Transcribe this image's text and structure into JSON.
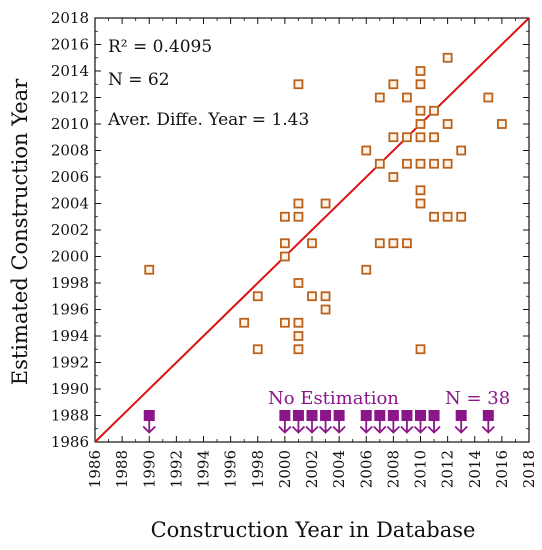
{
  "chart_data": {
    "type": "scatter",
    "xlabel": "Construction Year in Database",
    "ylabel": "Estimated Construction Year",
    "xlim": [
      1986,
      2018
    ],
    "ylim": [
      1986,
      2018
    ],
    "x_ticks": [
      1986,
      1988,
      1990,
      1992,
      1994,
      1996,
      1998,
      2000,
      2002,
      2004,
      2006,
      2008,
      2010,
      2012,
      2014,
      2016,
      2018
    ],
    "y_ticks": [
      1986,
      1988,
      1990,
      1992,
      1994,
      1996,
      1998,
      2000,
      2002,
      2004,
      2006,
      2008,
      2010,
      2012,
      2014,
      2016,
      2018
    ],
    "stats": [
      "R² = 0.4095",
      "N = 62",
      "Aver. Diffe. Year = 1.43"
    ],
    "reference_line": {
      "type": "y=x",
      "color": "#dd1111"
    },
    "marker_color": "#b8621e",
    "points": [
      {
        "x": 1990,
        "y": 1999
      },
      {
        "x": 1997,
        "y": 1995
      },
      {
        "x": 1998,
        "y": 1993
      },
      {
        "x": 1998,
        "y": 1997
      },
      {
        "x": 2000,
        "y": 1995
      },
      {
        "x": 2000,
        "y": 2000
      },
      {
        "x": 2000,
        "y": 2001
      },
      {
        "x": 2000,
        "y": 2003
      },
      {
        "x": 2001,
        "y": 1993
      },
      {
        "x": 2001,
        "y": 1994
      },
      {
        "x": 2001,
        "y": 1995
      },
      {
        "x": 2001,
        "y": 1998
      },
      {
        "x": 2001,
        "y": 2003
      },
      {
        "x": 2001,
        "y": 2004
      },
      {
        "x": 2001,
        "y": 2013
      },
      {
        "x": 2002,
        "y": 1997
      },
      {
        "x": 2002,
        "y": 2001
      },
      {
        "x": 2003,
        "y": 1996
      },
      {
        "x": 2003,
        "y": 1997
      },
      {
        "x": 2003,
        "y": 2004
      },
      {
        "x": 2006,
        "y": 1999
      },
      {
        "x": 2006,
        "y": 2008
      },
      {
        "x": 2007,
        "y": 2001
      },
      {
        "x": 2007,
        "y": 2007
      },
      {
        "x": 2007,
        "y": 2012
      },
      {
        "x": 2008,
        "y": 2001
      },
      {
        "x": 2008,
        "y": 2006
      },
      {
        "x": 2008,
        "y": 2009
      },
      {
        "x": 2008,
        "y": 2013
      },
      {
        "x": 2009,
        "y": 2001
      },
      {
        "x": 2009,
        "y": 2007
      },
      {
        "x": 2009,
        "y": 2009
      },
      {
        "x": 2009,
        "y": 2012
      },
      {
        "x": 2010,
        "y": 1993
      },
      {
        "x": 2010,
        "y": 2004
      },
      {
        "x": 2010,
        "y": 2005
      },
      {
        "x": 2010,
        "y": 2007
      },
      {
        "x": 2010,
        "y": 2009
      },
      {
        "x": 2010,
        "y": 2010
      },
      {
        "x": 2010,
        "y": 2011
      },
      {
        "x": 2010,
        "y": 2013
      },
      {
        "x": 2010,
        "y": 2014
      },
      {
        "x": 2011,
        "y": 2003
      },
      {
        "x": 2011,
        "y": 2007
      },
      {
        "x": 2011,
        "y": 2009
      },
      {
        "x": 2011,
        "y": 2011
      },
      {
        "x": 2012,
        "y": 2003
      },
      {
        "x": 2012,
        "y": 2007
      },
      {
        "x": 2012,
        "y": 2010
      },
      {
        "x": 2012,
        "y": 2015
      },
      {
        "x": 2013,
        "y": 2003
      },
      {
        "x": 2013,
        "y": 2008
      },
      {
        "x": 2015,
        "y": 2012
      },
      {
        "x": 2016,
        "y": 2010
      }
    ],
    "no_estimation": {
      "label": "No Estimation",
      "count_label": "N = 38",
      "color": "#8a168a",
      "marker_y": 1988,
      "x": [
        1990,
        2000,
        2001,
        2002,
        2003,
        2004,
        2006,
        2007,
        2008,
        2009,
        2010,
        2011,
        2013,
        2015
      ]
    }
  }
}
